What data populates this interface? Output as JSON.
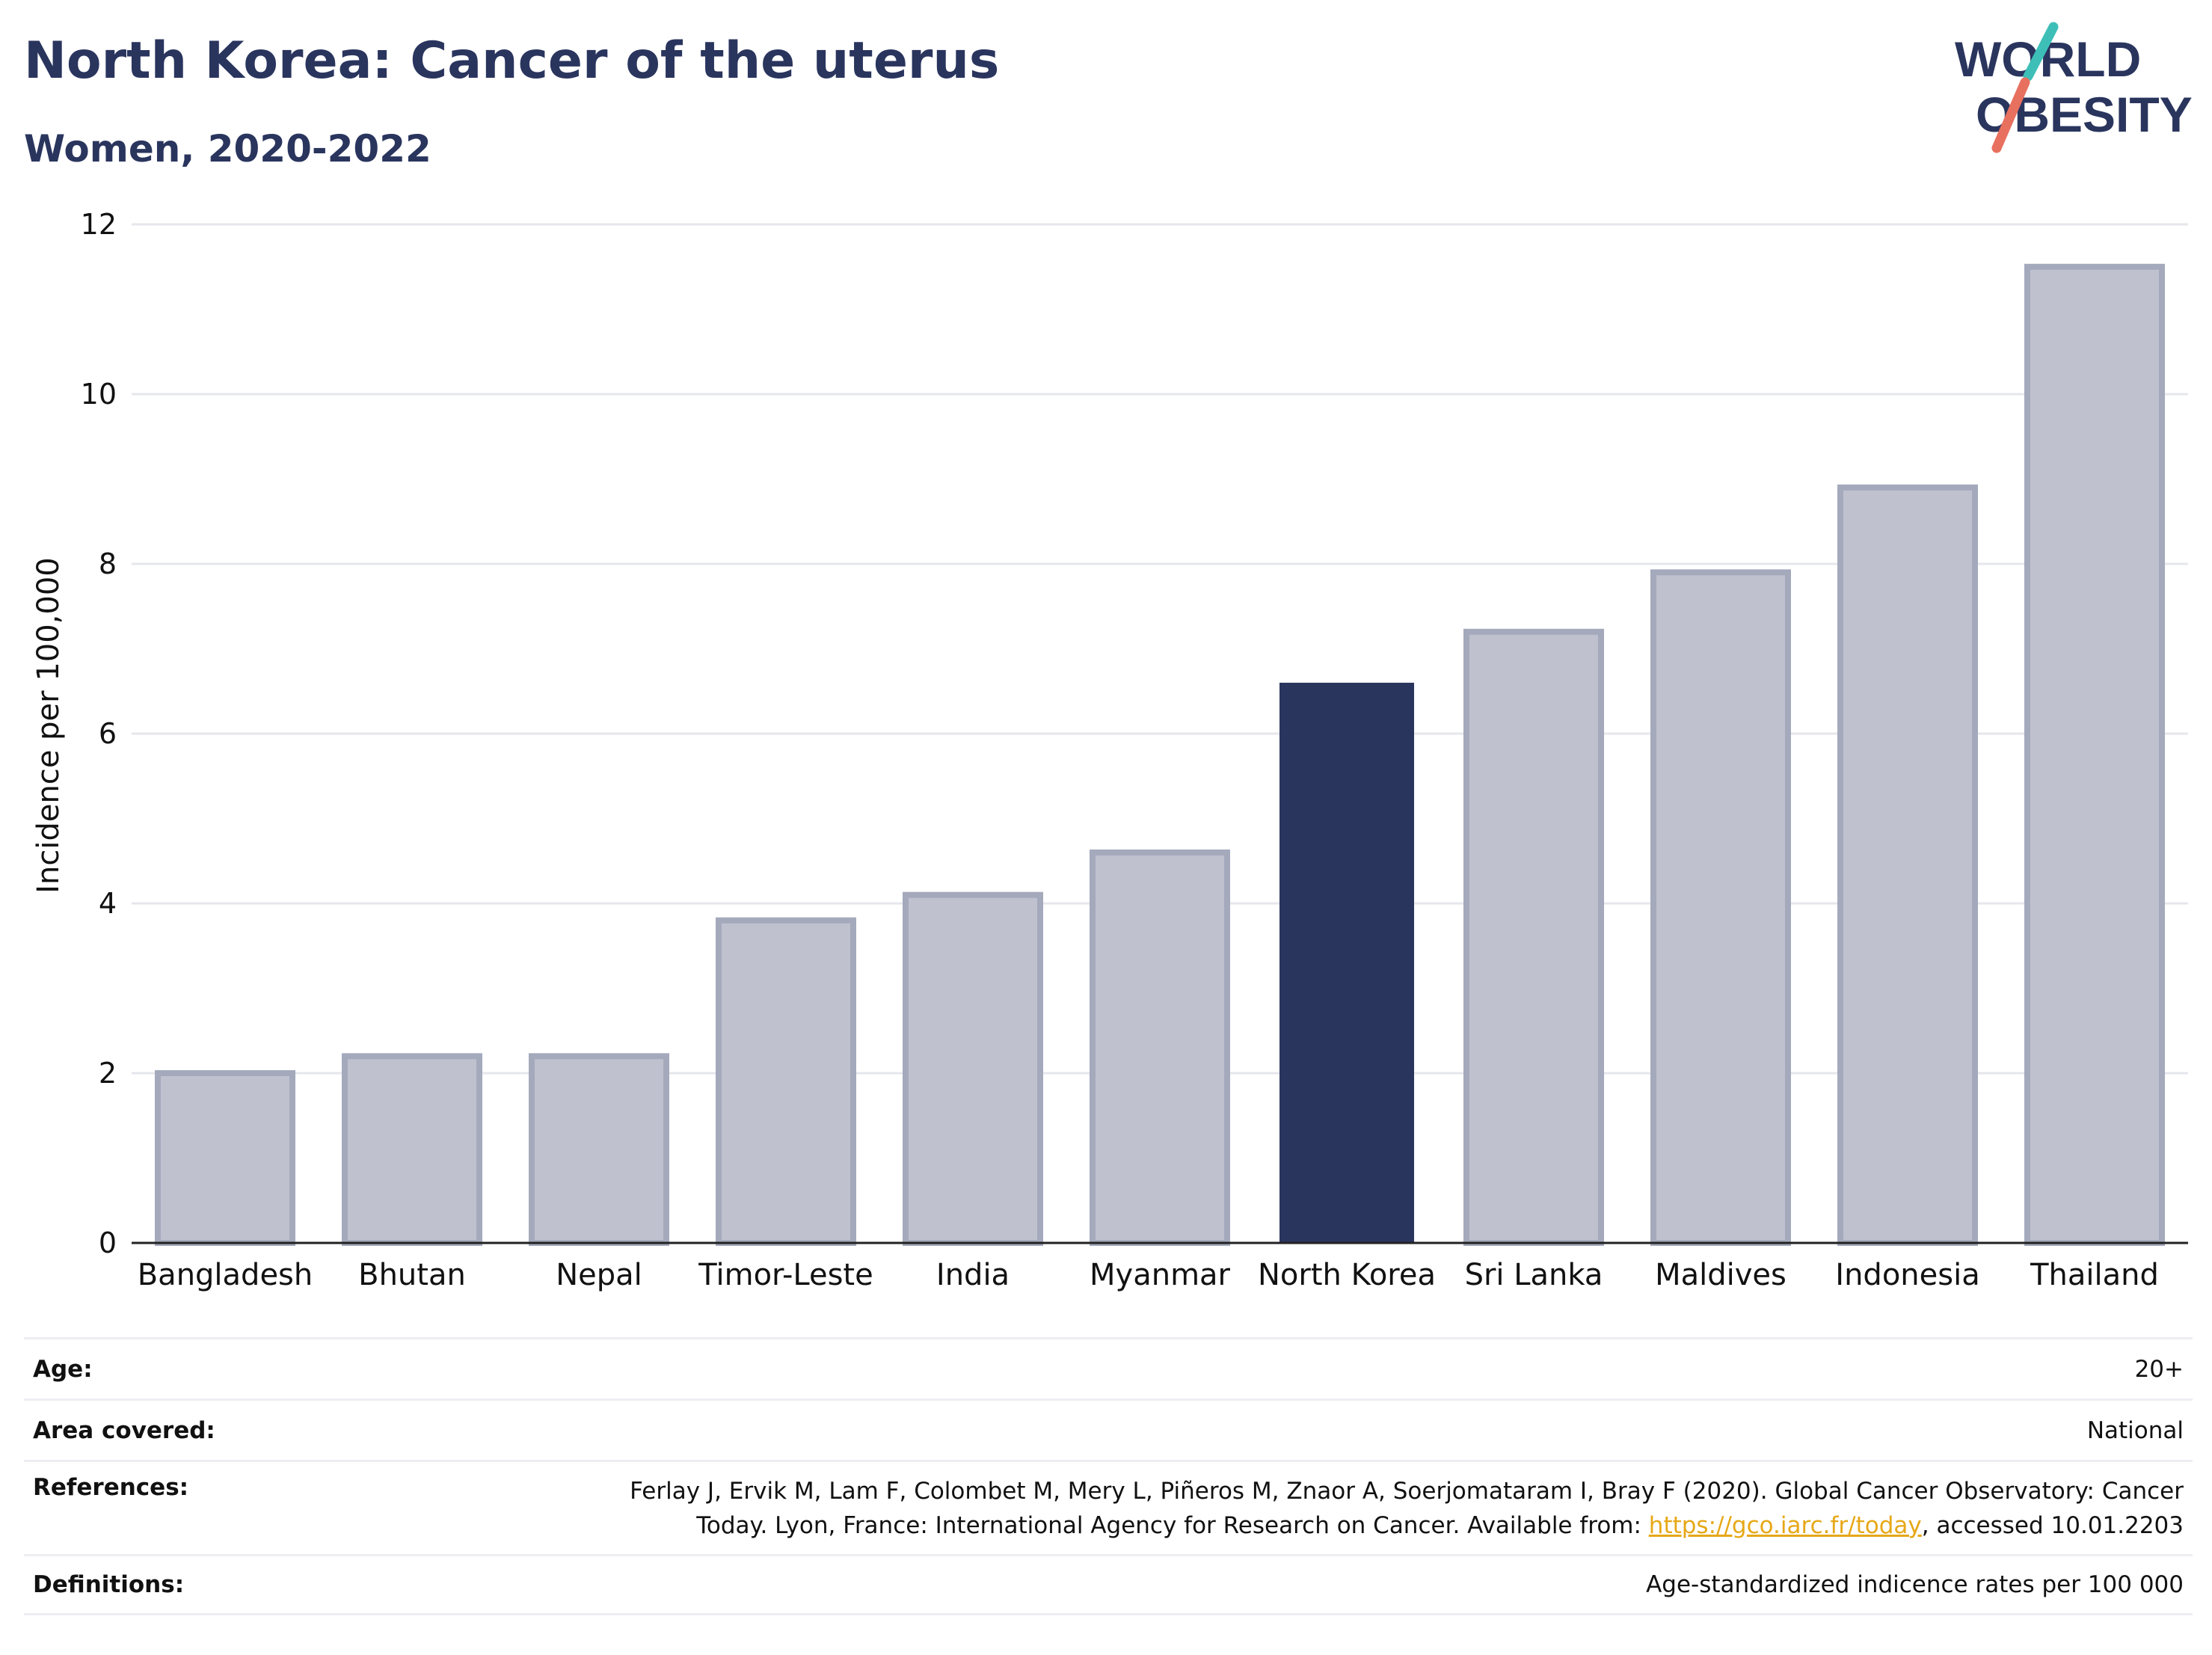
{
  "header": {
    "title": "North Korea: Cancer of the uterus",
    "subtitle": "Women, 2020-2022"
  },
  "logo": {
    "line1": "WORLD",
    "line2": "OBESITY",
    "colors": {
      "text": "#2a355e",
      "slash_top": "#3dbfb8",
      "slash_bottom": "#e8705f"
    }
  },
  "chart_data": {
    "type": "bar",
    "title": "North Korea: Cancer of the uterus",
    "subtitle": "Women, 2020-2022",
    "xlabel": "",
    "ylabel": "Incidence per 100,000",
    "ylim": [
      0,
      12
    ],
    "yticks": [
      0,
      2,
      4,
      6,
      8,
      10,
      12
    ],
    "grid": true,
    "categories": [
      "Bangladesh",
      "Bhutan",
      "Nepal",
      "Timor-Leste",
      "India",
      "Myanmar",
      "North Korea",
      "Sri Lanka",
      "Maldives",
      "Indonesia",
      "Thailand"
    ],
    "values": [
      2.0,
      2.2,
      2.2,
      3.8,
      4.1,
      4.6,
      6.6,
      7.2,
      7.9,
      8.9,
      11.5
    ],
    "highlight": "North Korea",
    "colors": {
      "highlight": "#2a355e",
      "bar_fill": "#bfc2ce",
      "bar_stroke": "#a4a9bc",
      "grid": "#e6e7ec",
      "axis": "#222222"
    }
  },
  "meta": {
    "age_label": "Age:",
    "age_value": "20+",
    "area_label": "Area covered:",
    "area_value": "National",
    "references_label": "References:",
    "references_line1": "Ferlay J, Ervik M, Lam F, Colombet M, Mery L, Piñeros M, Znaor A, Soerjomataram I, Bray F (2020). Global Cancer Observatory: Cancer",
    "references_line2_pre": "Today. Lyon, France: International Agency for Research on Cancer. Available from: ",
    "references_link": "https://gco.iarc.fr/today",
    "references_line2_post": ", accessed 10.01.2203",
    "definitions_label": "Definitions:",
    "definitions_value": "Age-standardized indicence rates per 100 000"
  }
}
